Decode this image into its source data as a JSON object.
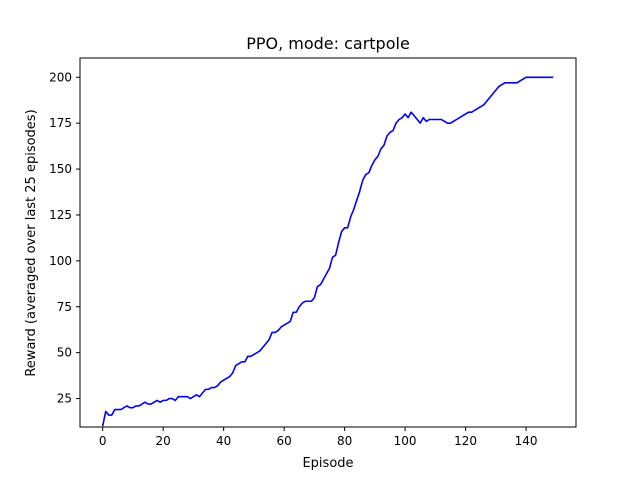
{
  "chart_data": {
    "type": "line",
    "title": "PPO, mode: cartpole",
    "xlabel": "Episode",
    "ylabel": "Reward (averaged over last 25 episodes)",
    "xlim": [
      -7.5,
      156.5
    ],
    "ylim": [
      9.5,
      210.5
    ],
    "xticks": [
      0,
      20,
      40,
      60,
      80,
      100,
      120,
      140
    ],
    "yticks": [
      25,
      50,
      75,
      100,
      125,
      150,
      175,
      200
    ],
    "grid": false,
    "series": [
      {
        "color": "#0000ff",
        "x": [
          0,
          1,
          2,
          3,
          4,
          5,
          6,
          7,
          8,
          9,
          10,
          11,
          12,
          13,
          14,
          15,
          16,
          17,
          18,
          19,
          20,
          21,
          22,
          23,
          24,
          25,
          26,
          27,
          28,
          29,
          30,
          31,
          32,
          33,
          34,
          35,
          36,
          37,
          38,
          39,
          40,
          41,
          42,
          43,
          44,
          45,
          46,
          47,
          48,
          49,
          50,
          51,
          52,
          53,
          54,
          55,
          56,
          57,
          58,
          59,
          60,
          61,
          62,
          63,
          64,
          65,
          66,
          67,
          68,
          69,
          70,
          71,
          72,
          73,
          74,
          75,
          76,
          77,
          78,
          79,
          80,
          81,
          82,
          83,
          84,
          85,
          86,
          87,
          88,
          89,
          90,
          91,
          92,
          93,
          94,
          95,
          96,
          97,
          98,
          99,
          100,
          101,
          102,
          103,
          104,
          105,
          106,
          107,
          108,
          109,
          110,
          111,
          112,
          113,
          114,
          115,
          116,
          117,
          118,
          119,
          120,
          121,
          122,
          123,
          124,
          125,
          126,
          127,
          128,
          129,
          130,
          131,
          132,
          133,
          134,
          135,
          136,
          137,
          138,
          139,
          140,
          141,
          142,
          143,
          144,
          145,
          146,
          147,
          148,
          149
        ],
        "y": [
          10,
          18,
          16,
          16,
          19,
          19,
          19,
          20,
          21,
          20,
          20,
          21,
          21,
          22,
          23,
          22,
          22,
          23,
          24,
          23,
          24,
          24,
          25,
          25,
          24,
          26,
          26,
          26,
          26,
          25,
          26,
          27,
          26,
          28,
          30,
          30,
          31,
          31,
          32,
          34,
          35,
          36,
          37,
          39,
          43,
          44,
          45,
          45,
          48,
          48,
          49,
          50,
          51,
          53,
          55,
          57,
          61,
          61,
          62,
          64,
          65,
          66,
          67,
          72,
          72,
          75,
          77,
          78,
          78,
          78,
          80,
          86,
          87,
          90,
          93,
          96,
          102,
          103,
          110,
          116,
          118,
          118,
          124,
          128,
          133,
          138,
          144,
          147,
          148,
          152,
          155,
          157,
          161,
          163,
          168,
          170,
          171,
          175,
          177,
          178,
          180,
          178,
          181,
          179,
          177,
          175,
          178,
          176,
          177,
          177,
          177,
          177,
          177,
          176,
          175,
          175,
          176,
          177,
          178,
          179,
          180,
          181,
          181,
          182,
          183,
          184,
          185,
          187,
          189,
          191,
          193,
          195,
          196,
          197,
          197,
          197,
          197,
          197,
          198,
          199,
          200,
          200,
          200,
          200,
          200,
          200,
          200,
          200,
          200,
          200
        ]
      }
    ]
  }
}
